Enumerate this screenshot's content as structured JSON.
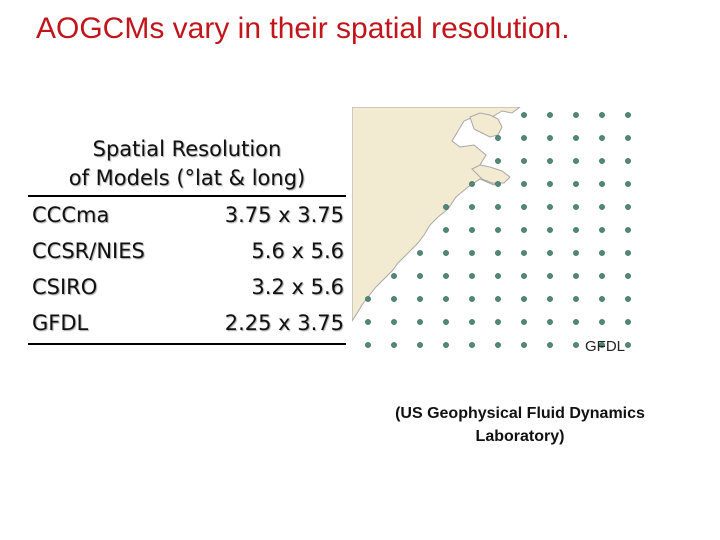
{
  "slide": {
    "title": "AOGCMs vary in their spatial resolution."
  },
  "resolution_table": {
    "header_line1": "Spatial Resolution",
    "header_line2": "of Models (°lat & long)",
    "rows": [
      {
        "model": "CCCma",
        "resolution": "3.75 x 3.75"
      },
      {
        "model": "CCSR/NIES",
        "resolution": "5.6 x 5.6"
      },
      {
        "model": "CSIRO",
        "resolution": "3.2 x 5.6"
      },
      {
        "model": "GFDL",
        "resolution": "2.25 x 3.75"
      }
    ]
  },
  "map": {
    "label": "GFDL",
    "land_color": "#f3ead2",
    "coast_color": "#a8a8a8",
    "grid_point_color": "#4f8a78"
  },
  "caption": {
    "line1": "(US Geophysical Fluid Dynamics",
    "line2": "Laboratory)"
  }
}
